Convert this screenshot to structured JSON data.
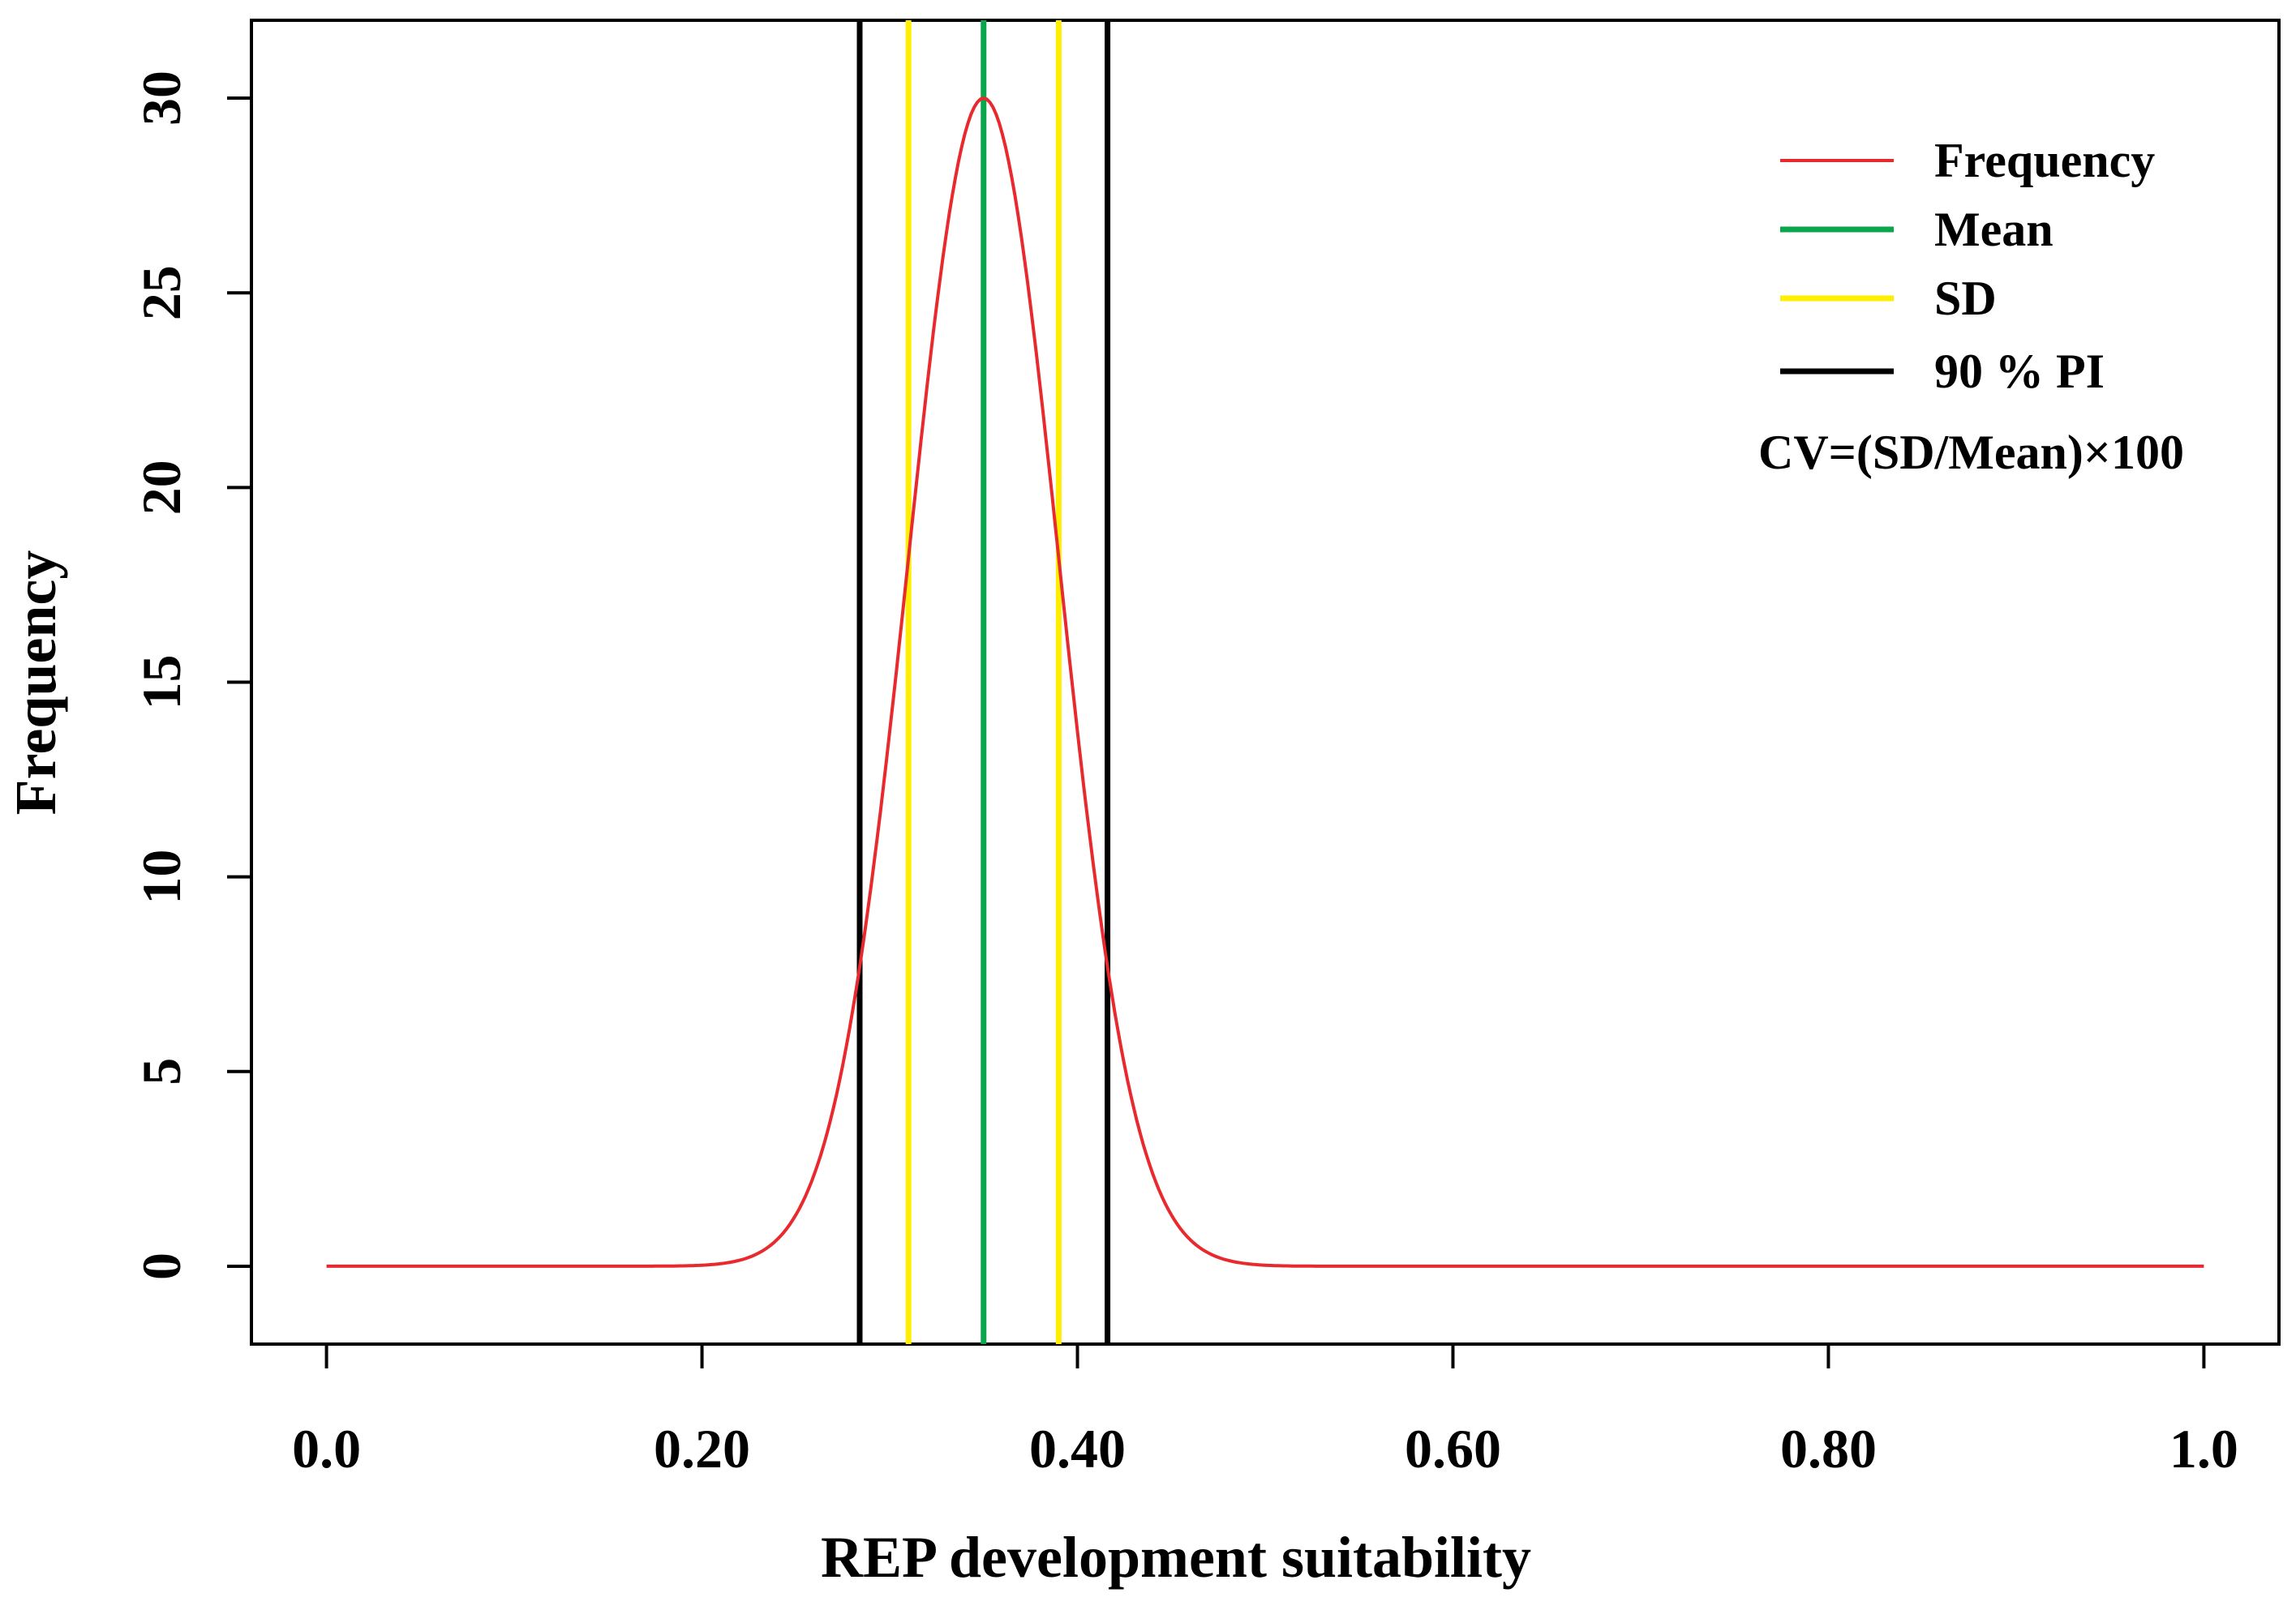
{
  "chart_data": {
    "type": "line",
    "title": "",
    "xlabel": "REP development suitability",
    "ylabel": "Frequency",
    "xlim": [
      -0.04,
      1.04
    ],
    "ylim": [
      -2,
      32
    ],
    "x_ticks": [
      0.0,
      0.2,
      0.4,
      0.6,
      0.8,
      1.0
    ],
    "x_tick_labels": [
      "0.0",
      "0.20",
      "0.40",
      "0.60",
      "0.80",
      "1.0"
    ],
    "y_ticks": [
      0,
      5,
      10,
      15,
      20,
      25,
      30
    ],
    "y_tick_labels": [
      "0",
      "5",
      "10",
      "15",
      "20",
      "25",
      "30"
    ],
    "series": [
      {
        "name": "Frequency",
        "color": "#e8292e",
        "distribution": "normal",
        "mean": 0.35,
        "sd": 0.04,
        "peak": 30,
        "x_range": [
          0.0,
          1.0
        ]
      }
    ],
    "vertical_lines": [
      {
        "name": "Mean",
        "color": "#0aa64b",
        "x": [
          0.35
        ]
      },
      {
        "name": "SD",
        "color": "#ffee00",
        "x": [
          0.31,
          0.39
        ]
      },
      {
        "name": "90 % PI",
        "color": "#000000",
        "x": [
          0.284,
          0.416
        ]
      }
    ],
    "legend": {
      "position": "top-right",
      "entries": [
        {
          "label": "Frequency",
          "color": "#e8292e"
        },
        {
          "label": "Mean",
          "color": "#0aa64b"
        },
        {
          "label": "SD",
          "color": "#ffee00"
        },
        {
          "label": "90 % PI",
          "color": "#000000"
        }
      ],
      "note": "CV=(SD/Mean)×100"
    }
  }
}
